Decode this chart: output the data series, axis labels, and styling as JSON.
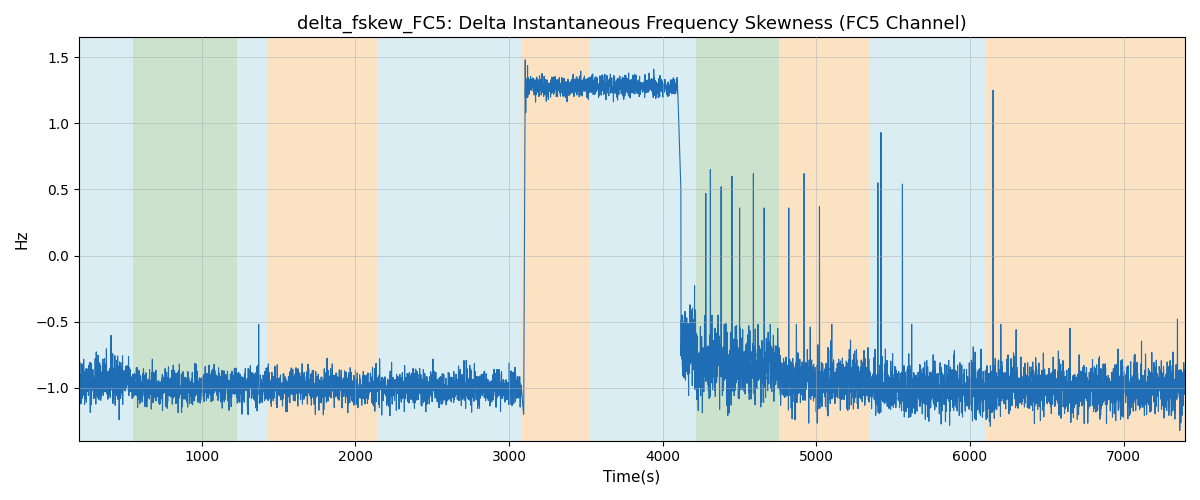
{
  "title": "delta_fskew_FC5: Delta Instantaneous Frequency Skewness (FC5 Channel)",
  "xlabel": "Time(s)",
  "ylabel": "Hz",
  "xlim": [
    200,
    7400
  ],
  "ylim": [
    -1.4,
    1.65
  ],
  "bg_bands": [
    {
      "xmin": 200,
      "xmax": 550,
      "color": "#add8e6",
      "alpha": 0.45
    },
    {
      "xmin": 550,
      "xmax": 1230,
      "color": "#90c090",
      "alpha": 0.45
    },
    {
      "xmin": 1230,
      "xmax": 1430,
      "color": "#add8e6",
      "alpha": 0.45
    },
    {
      "xmin": 1430,
      "xmax": 2150,
      "color": "#f4c07a",
      "alpha": 0.45
    },
    {
      "xmin": 2150,
      "xmax": 3080,
      "color": "#add8e6",
      "alpha": 0.45
    },
    {
      "xmin": 3080,
      "xmax": 3530,
      "color": "#f4c07a",
      "alpha": 0.45
    },
    {
      "xmin": 3530,
      "xmax": 4120,
      "color": "#add8e6",
      "alpha": 0.45
    },
    {
      "xmin": 4120,
      "xmax": 4220,
      "color": "#add8e6",
      "alpha": 0.45
    },
    {
      "xmin": 4220,
      "xmax": 4760,
      "color": "#90c090",
      "alpha": 0.45
    },
    {
      "xmin": 4760,
      "xmax": 5350,
      "color": "#f4c07a",
      "alpha": 0.45
    },
    {
      "xmin": 5350,
      "xmax": 6100,
      "color": "#add8e6",
      "alpha": 0.45
    },
    {
      "xmin": 6100,
      "xmax": 6580,
      "color": "#f4c07a",
      "alpha": 0.45
    },
    {
      "xmin": 6580,
      "xmax": 7400,
      "color": "#f4c07a",
      "alpha": 0.45
    }
  ],
  "line_color": "#1f6eb5",
  "line_width": 0.8,
  "grid_color": "#b0b0b0",
  "grid_alpha": 0.7,
  "title_fontsize": 13,
  "label_fontsize": 11,
  "xticks": [
    1000,
    2000,
    3000,
    4000,
    5000,
    6000,
    7000
  ],
  "yticks": [
    -1.0,
    -0.5,
    0.0,
    0.5,
    1.0,
    1.5
  ]
}
